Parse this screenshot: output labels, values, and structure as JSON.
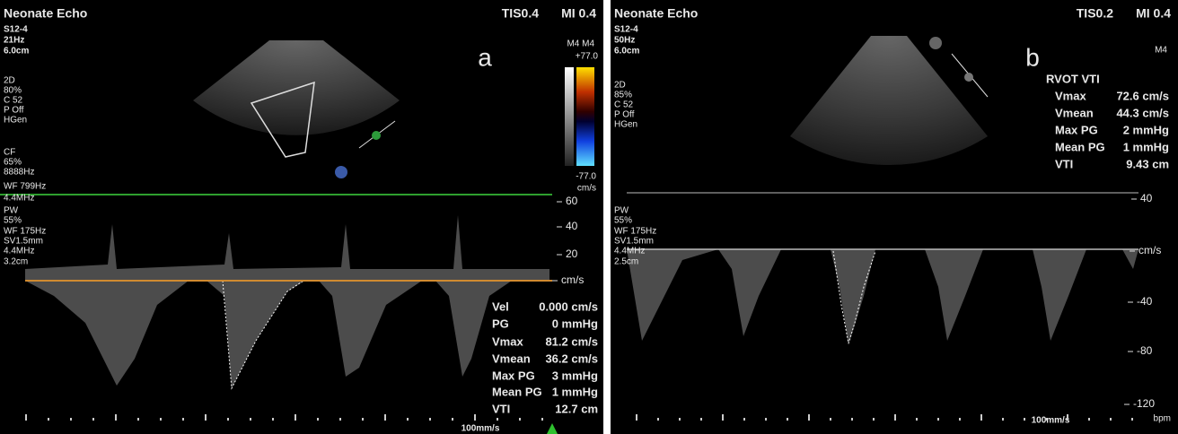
{
  "panels": [
    {
      "title": "Neonate Echo",
      "tis": "TIS0.4",
      "mi": "MI 0.4",
      "label": "a",
      "settings": [
        "S12-4",
        "21Hz",
        "6.0cm",
        "2D",
        "80%",
        "C 52",
        "P Off",
        "HGen",
        "CF",
        "65%",
        "8888Hz",
        "WF 799Hz",
        "4.4MHz",
        "PW",
        "55%",
        "WF 175Hz",
        "SV1.5mm",
        "4.4MHz",
        "3.2cm"
      ],
      "color_bar": {
        "mode": "M4 M4",
        "max": "+77.0",
        "min": "-77.0",
        "unit": "cm/s"
      },
      "scale": [
        "60",
        "40",
        "20",
        "cm/s"
      ],
      "measurements": [
        [
          "Vel",
          "0.000 cm/s"
        ],
        [
          "PG",
          "0 mmHg"
        ],
        [
          "Vmax",
          "81.2 cm/s"
        ],
        [
          "Vmean",
          "36.2 cm/s"
        ],
        [
          "Max PG",
          "3 mmHg"
        ],
        [
          "Mean PG",
          "1 mmHg"
        ],
        [
          "VTI",
          "12.7 cm"
        ]
      ],
      "sweep": "100mm/s"
    },
    {
      "title": "Neonate Echo",
      "tis": "TIS0.2",
      "mi": "MI 0.4",
      "label": "b",
      "mode": "M4",
      "settings": [
        "S12-4",
        "50Hz",
        "6.0cm",
        "2D",
        "85%",
        "C 52",
        "P Off",
        "HGen",
        "PW",
        "55%",
        "WF 175Hz",
        "SV1.5mm",
        "4.4MHz",
        "2.5cm"
      ],
      "measurement_title": "RVOT VTI",
      "scale": [
        "40",
        "cm/s",
        "-40",
        "-80",
        "-120"
      ],
      "measurements": [
        [
          "Vmax",
          "72.6 cm/s"
        ],
        [
          "Vmean",
          "44.3 cm/s"
        ],
        [
          "Max PG",
          "2 mmHg"
        ],
        [
          "Mean PG",
          "1 mmHg"
        ],
        [
          "VTI",
          "9.43 cm"
        ]
      ],
      "sweep": "100mm/s",
      "rate_unit": "bpm"
    }
  ]
}
